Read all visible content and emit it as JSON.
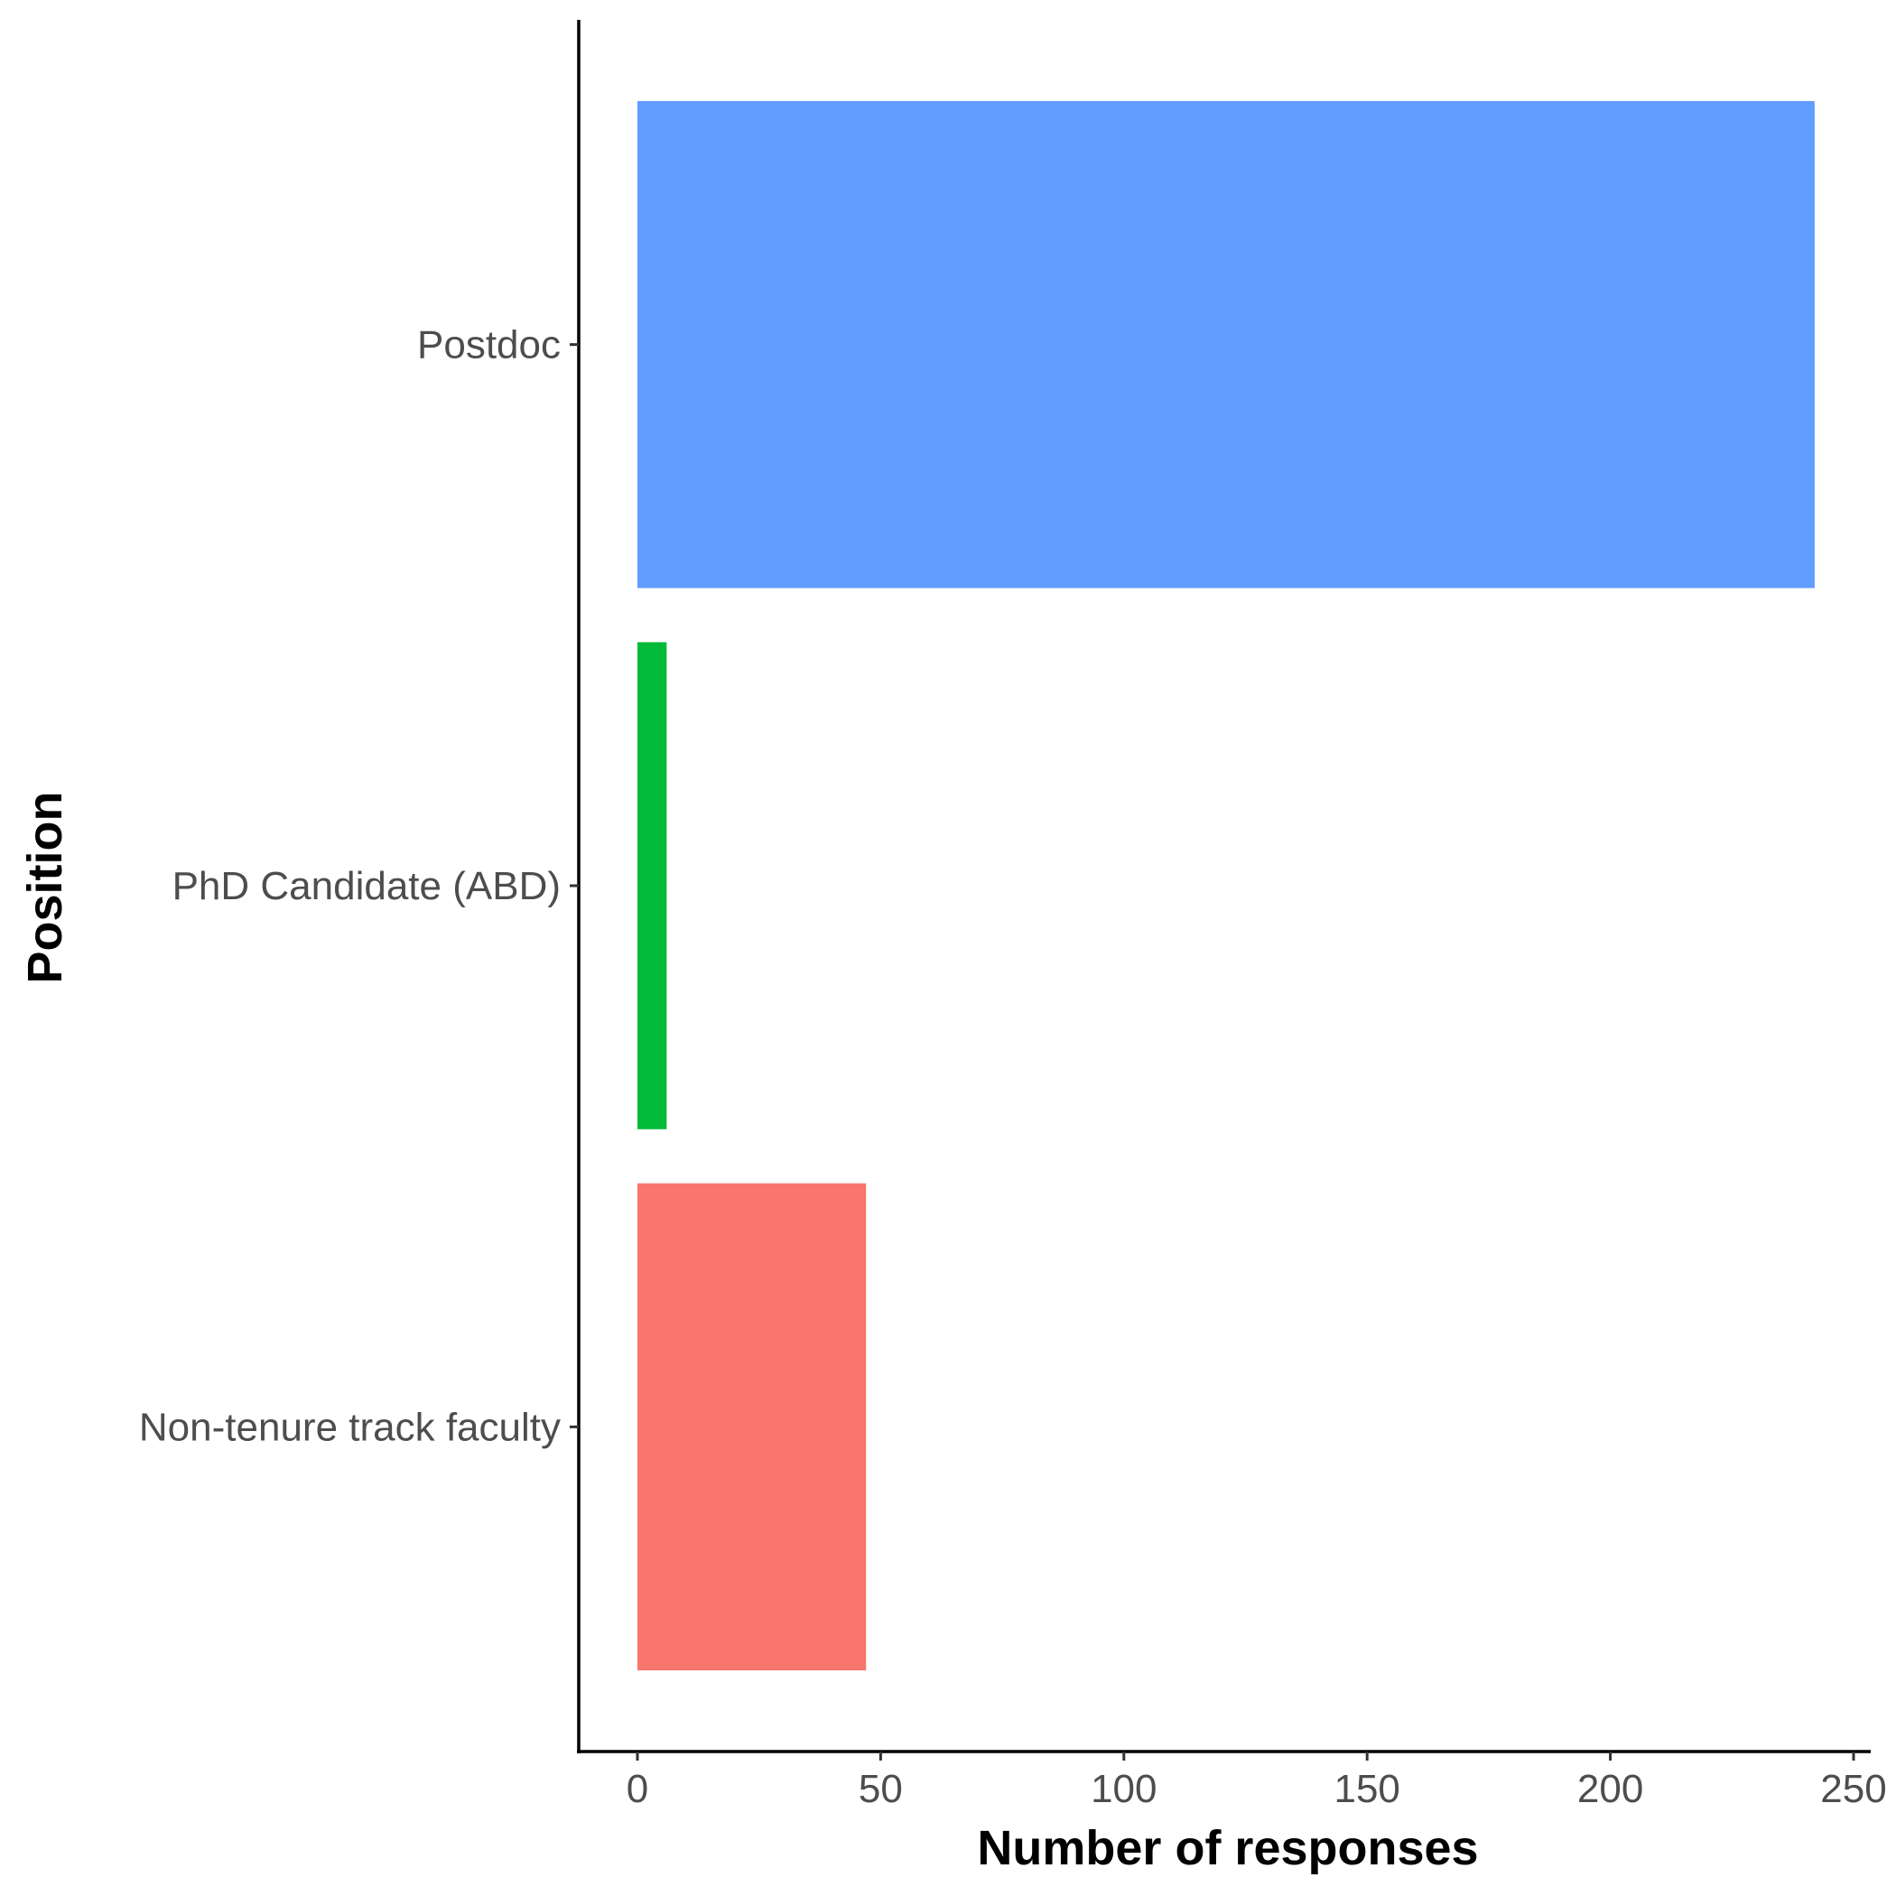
{
  "chart_data": {
    "type": "bar",
    "orientation": "horizontal",
    "categories": [
      "Non-tenure track faculty",
      "PhD Candidate (ABD)",
      "Postdoc"
    ],
    "values": [
      47,
      6,
      242
    ],
    "colors": [
      "#F8766D",
      "#00BA38",
      "#619CFF"
    ],
    "xlabel": "Number of responses",
    "ylabel": "Position",
    "xlim": [
      0,
      250
    ],
    "xticks": [
      0,
      50,
      100,
      150,
      200,
      250
    ],
    "xtick_labels": [
      "0",
      "50",
      "100",
      "150",
      "200",
      "250"
    ],
    "grid": false,
    "legend": "none"
  }
}
